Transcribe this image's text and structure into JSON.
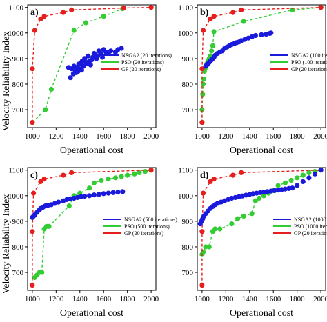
{
  "figure": {
    "ylabel": "Velocity Reliability Index",
    "xlabel": "Operational cost"
  },
  "colors": {
    "nsga2": "#1a1adc",
    "pso": "#33cc33",
    "gp": "#e61e1e"
  },
  "chart_data": [
    {
      "type": "scatter",
      "panel_label": "a)",
      "xlabel": "Operational cost",
      "ylabel": "Velocity Reliability Index",
      "xlim": [
        960,
        2040
      ],
      "ylim": [
        630,
        1110
      ],
      "xticks": [
        1000,
        1200,
        1400,
        1600,
        1800,
        2000
      ],
      "yticks": [
        700,
        800,
        900,
        1000,
        1100
      ],
      "grid": false,
      "legend_position": "center-right",
      "series": [
        {
          "name": "NSGA2 (20 iterations)",
          "key": "nsga2",
          "style": "markers",
          "x": [
            1305,
            1320,
            1330,
            1345,
            1350,
            1360,
            1370,
            1375,
            1385,
            1390,
            1400,
            1405,
            1415,
            1420,
            1430,
            1440,
            1450,
            1460,
            1470,
            1480,
            1490,
            1500,
            1510,
            1520,
            1530,
            1540,
            1550,
            1560,
            1575,
            1590,
            1600,
            1620,
            1640,
            1660,
            1700,
            1720,
            1750
          ],
          "y": [
            865,
            825,
            860,
            840,
            870,
            855,
            845,
            865,
            850,
            878,
            860,
            880,
            855,
            890,
            870,
            900,
            885,
            880,
            910,
            890,
            875,
            895,
            905,
            920,
            915,
            900,
            910,
            930,
            920,
            905,
            935,
            925,
            920,
            930,
            925,
            935,
            940
          ]
        },
        {
          "name": "PSO (20 iterations)",
          "key": "pso",
          "style": "dashed-markers",
          "x": [
            1000,
            1110,
            1160,
            1350,
            1450,
            1600,
            1760,
            1770
          ],
          "y": [
            650,
            700,
            780,
            1010,
            1040,
            1065,
            1095,
            1098
          ]
        },
        {
          "name": "GP (20 iterations)",
          "key": "gp",
          "style": "dashed-markers",
          "x": [
            1000,
            1000,
            1020,
            1070,
            1100,
            1260,
            1330,
            1770,
            2000
          ],
          "y": [
            650,
            860,
            1010,
            1055,
            1065,
            1080,
            1090,
            1098,
            1100
          ]
        }
      ]
    },
    {
      "type": "scatter",
      "panel_label": "b)",
      "xlabel": "Operational cost",
      "ylabel": "Velocity Reliability Index",
      "xlim": [
        960,
        2040
      ],
      "ylim": [
        630,
        1110
      ],
      "xticks": [
        1000,
        1200,
        1400,
        1600,
        1800,
        2000
      ],
      "yticks": [
        700,
        800,
        900,
        1000,
        1100
      ],
      "grid": false,
      "legend_position": "center-right",
      "series": [
        {
          "name": "NSGA2 (100 iterations)",
          "key": "nsga2",
          "style": "markers",
          "x": [
            1030,
            1040,
            1050,
            1060,
            1070,
            1080,
            1090,
            1100,
            1110,
            1130,
            1150,
            1170,
            1190,
            1210,
            1230,
            1250,
            1270,
            1290,
            1310,
            1330,
            1360,
            1390,
            1420,
            1450,
            1500,
            1540,
            1570,
            1580
          ],
          "y": [
            870,
            875,
            880,
            885,
            890,
            895,
            900,
            905,
            912,
            920,
            925,
            930,
            940,
            945,
            950,
            955,
            958,
            962,
            965,
            970,
            975,
            980,
            985,
            990,
            993,
            995,
            998,
            1000
          ]
        },
        {
          "name": "PSO (100 iterations)",
          "key": "pso",
          "style": "dashed-markers",
          "x": [
            1000,
            1000,
            1005,
            1010,
            1015,
            1020,
            1025,
            1030,
            1040,
            1050,
            1060,
            1070,
            1080,
            1090,
            1100,
            1350,
            1760,
            2000
          ],
          "y": [
            650,
            700,
            760,
            800,
            820,
            850,
            860,
            870,
            880,
            890,
            900,
            910,
            930,
            950,
            1005,
            1045,
            1090,
            1100
          ]
        },
        {
          "name": "GP (20 iterations)",
          "key": "gp",
          "style": "dashed-markers",
          "x": [
            1000,
            1000,
            1010,
            1070,
            1100,
            1260,
            1330,
            2000
          ],
          "y": [
            650,
            860,
            1010,
            1055,
            1065,
            1080,
            1090,
            1100
          ]
        }
      ]
    },
    {
      "type": "scatter",
      "panel_label": "c)",
      "xlabel": "Operational cost",
      "ylabel": "Velocity Reliability Index",
      "xlim": [
        960,
        2040
      ],
      "ylim": [
        630,
        1110
      ],
      "xticks": [
        1000,
        1200,
        1400,
        1600,
        1800,
        2000
      ],
      "yticks": [
        700,
        800,
        900,
        1000,
        1100
      ],
      "grid": false,
      "legend_position": "center-right",
      "series": [
        {
          "name": "NSGA2 (500 iterations)",
          "key": "nsga2",
          "style": "markers",
          "x": [
            1000,
            1010,
            1020,
            1040,
            1060,
            1070,
            1090,
            1110,
            1130,
            1160,
            1190,
            1220,
            1260,
            1290,
            1320,
            1350,
            1380,
            1410,
            1440,
            1480,
            1520,
            1560,
            1600,
            1640,
            1680,
            1720,
            1760
          ],
          "y": [
            915,
            920,
            925,
            935,
            945,
            950,
            955,
            960,
            962,
            965,
            970,
            975,
            980,
            985,
            988,
            990,
            993,
            996,
            998,
            1000,
            1003,
            1005,
            1008,
            1010,
            1012,
            1014,
            1016
          ]
        },
        {
          "name": "PSO (500 iterations)",
          "key": "pso",
          "style": "dashed-markers",
          "x": [
            1020,
            1040,
            1060,
            1080,
            1100,
            1120,
            1140,
            1310,
            1350,
            1400,
            1480,
            1520,
            1580,
            1640,
            1700,
            1750,
            1800,
            1860,
            1900,
            1950,
            2000
          ],
          "y": [
            680,
            690,
            700,
            700,
            870,
            880,
            880,
            960,
            1000,
            1010,
            1030,
            1050,
            1060,
            1065,
            1070,
            1075,
            1080,
            1085,
            1090,
            1095,
            1100
          ]
        },
        {
          "name": "GP (20 iterations)",
          "key": "gp",
          "style": "dashed-markers",
          "x": [
            1000,
            1000,
            1010,
            1070,
            1100,
            1260,
            1330,
            2000
          ],
          "y": [
            650,
            860,
            1010,
            1055,
            1065,
            1080,
            1090,
            1100
          ]
        }
      ]
    },
    {
      "type": "scatter",
      "panel_label": "d)",
      "xlabel": "Operational cost",
      "ylabel": "Velocity Reliability Index",
      "xlim": [
        960,
        2040
      ],
      "ylim": [
        630,
        1110
      ],
      "xticks": [
        1000,
        1200,
        1400,
        1600,
        1800,
        2000
      ],
      "yticks": [
        700,
        800,
        900,
        1000,
        1100
      ],
      "grid": false,
      "legend_position": "center-right",
      "series": [
        {
          "name": "NSGA2 (1000 iterations)",
          "key": "nsga2",
          "style": "markers",
          "x": [
            985,
            995,
            1005,
            1015,
            1030,
            1050,
            1070,
            1090,
            1110,
            1130,
            1160,
            1190,
            1220,
            1250,
            1280,
            1310,
            1340,
            1370,
            1400,
            1430,
            1460,
            1490,
            1520,
            1550,
            1580,
            1610,
            1640,
            1670,
            1700,
            1730,
            1760,
            1800,
            1850,
            1900,
            1950,
            2000
          ],
          "y": [
            890,
            900,
            910,
            920,
            930,
            940,
            950,
            958,
            965,
            970,
            975,
            980,
            985,
            990,
            993,
            996,
            999,
            1002,
            1005,
            1008,
            1010,
            1012,
            1014,
            1016,
            1018,
            1020,
            1022,
            1024,
            1026,
            1028,
            1030,
            1040,
            1055,
            1070,
            1085,
            1100
          ]
        },
        {
          "name": "PSO (1000 iterations)",
          "key": "pso",
          "style": "dashed-markers",
          "x": [
            1000,
            1010,
            1030,
            1060,
            1090,
            1110,
            1150,
            1250,
            1300,
            1350,
            1420,
            1450,
            1480,
            1520,
            1560,
            1600,
            1640,
            1700,
            1750,
            1800,
            1850,
            1900,
            1950,
            2000
          ],
          "y": [
            770,
            780,
            800,
            800,
            860,
            870,
            870,
            890,
            910,
            920,
            930,
            980,
            990,
            1000,
            1010,
            1020,
            1040,
            1050,
            1060,
            1070,
            1080,
            1090,
            1095,
            1100
          ]
        },
        {
          "name": "GP (20 iterations)",
          "key": "gp",
          "style": "dashed-markers",
          "x": [
            1000,
            1000,
            1010,
            1070,
            1100,
            1260,
            1330,
            2000
          ],
          "y": [
            650,
            860,
            1010,
            1055,
            1065,
            1080,
            1090,
            1100
          ]
        }
      ]
    }
  ]
}
